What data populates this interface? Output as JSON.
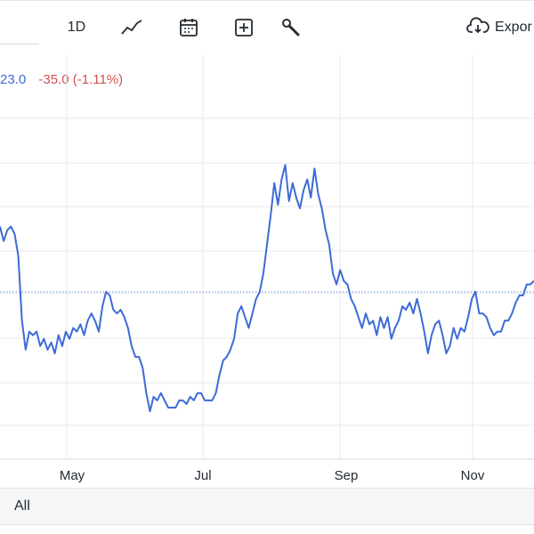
{
  "toolbar": {
    "interval_label": "1D",
    "export_label": "Expor",
    "icons": [
      "line-chart-icon",
      "calendar-icon",
      "add-indicator-icon",
      "settings-wrench-icon",
      "cloud-download-icon"
    ]
  },
  "quote": {
    "price": "23.0",
    "change": "-35.0 (-1.11%)"
  },
  "range": {
    "selected": "All"
  },
  "colors": {
    "line": "#3d6bd6",
    "negative": "#d35151",
    "grid": "#e8e8e8",
    "reference_line": "#3d6bd6"
  },
  "chart_data": {
    "type": "line",
    "x_tick_labels": [
      "May",
      "Jul",
      "Sep",
      "Nov"
    ],
    "grid": true,
    "reference_line_style": "dotted",
    "series": [
      {
        "values": [
          0.64,
          0.6,
          0.63,
          0.64,
          0.62,
          0.56,
          0.38,
          0.3,
          0.35,
          0.34,
          0.35,
          0.31,
          0.33,
          0.3,
          0.32,
          0.29,
          0.34,
          0.31,
          0.35,
          0.33,
          0.36,
          0.35,
          0.37,
          0.34,
          0.38,
          0.4,
          0.38,
          0.35,
          0.42,
          0.46,
          0.45,
          0.41,
          0.4,
          0.41,
          0.39,
          0.36,
          0.31,
          0.28,
          0.28,
          0.25,
          0.18,
          0.13,
          0.17,
          0.16,
          0.18,
          0.16,
          0.14,
          0.14,
          0.14,
          0.16,
          0.16,
          0.15,
          0.17,
          0.16,
          0.18,
          0.18,
          0.16,
          0.16,
          0.16,
          0.18,
          0.23,
          0.27,
          0.28,
          0.3,
          0.33,
          0.4,
          0.42,
          0.39,
          0.36,
          0.4,
          0.44,
          0.46,
          0.51,
          0.59,
          0.67,
          0.76,
          0.7,
          0.77,
          0.81,
          0.71,
          0.76,
          0.72,
          0.69,
          0.74,
          0.77,
          0.72,
          0.8,
          0.73,
          0.69,
          0.63,
          0.59,
          0.51,
          0.48,
          0.52,
          0.49,
          0.48,
          0.44,
          0.42,
          0.39,
          0.36,
          0.4,
          0.37,
          0.38,
          0.34,
          0.39,
          0.36,
          0.39,
          0.33,
          0.36,
          0.38,
          0.42,
          0.41,
          0.43,
          0.4,
          0.44,
          0.4,
          0.35,
          0.29,
          0.34,
          0.37,
          0.38,
          0.34,
          0.29,
          0.31,
          0.36,
          0.33,
          0.36,
          0.35,
          0.39,
          0.44,
          0.46,
          0.4,
          0.4,
          0.39,
          0.36,
          0.34,
          0.35,
          0.35,
          0.38,
          0.38,
          0.4,
          0.43,
          0.45,
          0.45,
          0.48,
          0.48,
          0.49
        ]
      }
    ]
  }
}
